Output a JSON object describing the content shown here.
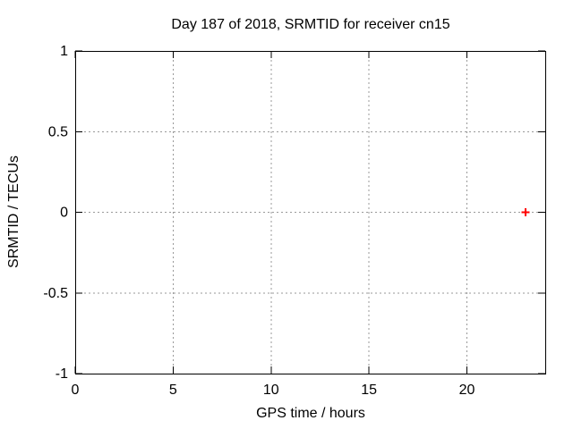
{
  "chart_data": {
    "type": "scatter",
    "title": "Day 187 of 2018, SRMTID for receiver cn15",
    "xlabel": "GPS time / hours",
    "ylabel": "SRMTID / TECUs",
    "xlim": [
      0,
      24
    ],
    "ylim": [
      -1,
      1
    ],
    "xticks": [
      0,
      5,
      10,
      15,
      20
    ],
    "yticks": [
      -1,
      -0.5,
      0,
      0.5,
      1
    ],
    "grid": true,
    "legend_position": "none",
    "series": [
      {
        "name": "SRMTID",
        "marker": "plus",
        "color": "#ff0000",
        "points": [
          [
            23,
            0
          ]
        ]
      }
    ],
    "style": {
      "border_color": "#000000",
      "grid_color": "#999999",
      "text_color": "#000000",
      "background": "#ffffff",
      "tick_length": 8,
      "marker_half_size": 4.5,
      "marker_stroke_width": 2
    }
  }
}
